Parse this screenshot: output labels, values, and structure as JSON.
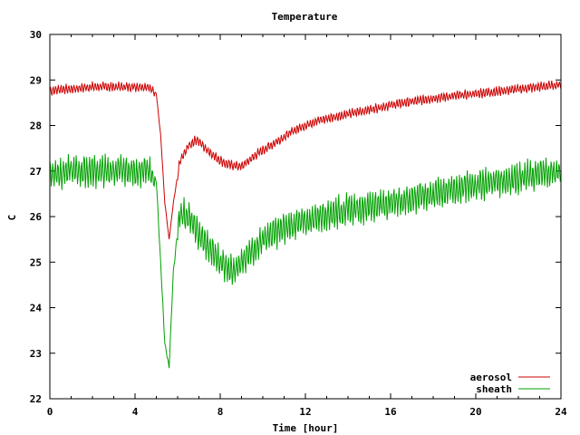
{
  "chart_data": {
    "type": "line",
    "title": "Temperature",
    "xlabel": "Time [hour]",
    "ylabel": "C",
    "xlim": [
      0,
      24
    ],
    "ylim": [
      22,
      30
    ],
    "xticks": [
      0,
      4,
      8,
      12,
      16,
      20,
      24
    ],
    "yticks": [
      22,
      23,
      24,
      25,
      26,
      27,
      28,
      29,
      30
    ],
    "legend_position": "bottom-right",
    "series": [
      {
        "name": "aerosol",
        "color": "#cc0000",
        "noise": 0.12,
        "x": [
          0,
          0.5,
          1,
          2,
          3,
          4,
          4.6,
          5.0,
          5.2,
          5.4,
          5.6,
          5.8,
          6.1,
          6.5,
          6.9,
          7.3,
          7.8,
          8.3,
          9.0,
          9.8,
          10.5,
          11.5,
          12.5,
          14,
          16,
          18,
          20,
          22,
          24
        ],
        "values": [
          28.75,
          28.8,
          28.8,
          28.85,
          28.85,
          28.85,
          28.85,
          28.7,
          27.8,
          26.3,
          25.5,
          26.3,
          27.2,
          27.55,
          27.7,
          27.5,
          27.3,
          27.15,
          27.1,
          27.4,
          27.6,
          27.9,
          28.1,
          28.25,
          28.45,
          28.6,
          28.7,
          28.8,
          28.9
        ]
      },
      {
        "name": "sheath",
        "color": "#00a000",
        "noise": 0.4,
        "x": [
          0,
          1,
          2,
          3,
          4,
          4.6,
          5.0,
          5.2,
          5.4,
          5.6,
          5.8,
          6.1,
          6.5,
          7.0,
          7.5,
          8.0,
          8.5,
          9.0,
          9.5,
          10.0,
          11.0,
          12.0,
          13.0,
          14.0,
          16.0,
          18.0,
          20.0,
          22.0,
          24.0
        ],
        "values": [
          26.95,
          27.0,
          27.0,
          27.0,
          27.0,
          27.0,
          26.8,
          25.0,
          23.2,
          22.7,
          24.8,
          26.1,
          26.0,
          25.6,
          25.3,
          25.0,
          24.85,
          24.95,
          25.25,
          25.5,
          25.75,
          25.9,
          26.05,
          26.15,
          26.3,
          26.5,
          26.7,
          26.85,
          27.0
        ]
      }
    ]
  }
}
